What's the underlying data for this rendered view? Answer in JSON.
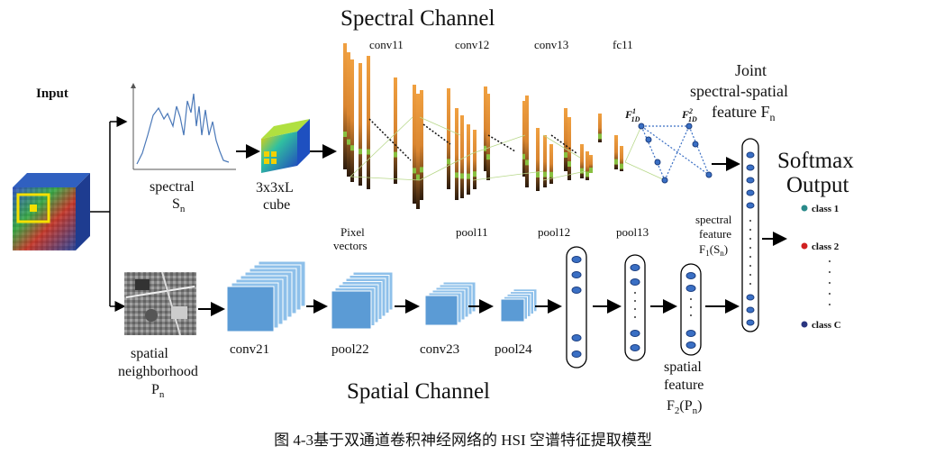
{
  "titles": {
    "spectral_channel": "Spectral Channel",
    "spatial_channel": "Spatial Channel",
    "softmax_line1": "Softmax",
    "softmax_line2": "Output"
  },
  "input": {
    "label": "Input"
  },
  "spectral_branch": {
    "label1": "spectral",
    "label2_main": "S",
    "label2_sub": "n",
    "cube_label1": "3x3xL",
    "cube_label2": "cube",
    "pixel_vectors1": "Pixel",
    "pixel_vectors2": "vectors",
    "layers": {
      "conv11": "conv11",
      "conv12": "conv12",
      "conv13": "conv13",
      "fc11": "fc11",
      "pool11": "pool11",
      "pool12": "pool12",
      "pool13": "pool13"
    },
    "f1d_1_main": "F",
    "f1d_1_sup": "1",
    "f1d_1_sub": "1D",
    "f1d_2_main": "F",
    "f1d_2_sup": "2",
    "f1d_2_sub": "1D",
    "feature1": "spectral",
    "feature2": "feature",
    "feature3_main": "F",
    "feature3_sub1": "1",
    "feature3_mid": "(S",
    "feature3_sub2": "n",
    "feature3_end": ")"
  },
  "joint": {
    "line1": "Joint",
    "line2": "spectral-spatial",
    "line3_main": "feature F",
    "line3_sub": "n"
  },
  "classes": [
    {
      "label": "class 1",
      "color": "#2a8a8a"
    },
    {
      "label": "class 2",
      "color": "#d02020"
    },
    {
      "label": "class C",
      "color": "#2a3580"
    }
  ],
  "spatial_branch": {
    "label1": "spatial",
    "label2": "neighborhood",
    "label3_main": "P",
    "label3_sub": "n",
    "layers": {
      "conv21": "conv21",
      "pool22": "pool22",
      "conv23": "conv23",
      "pool24": "pool24"
    },
    "feature1": "spatial",
    "feature2": "feature",
    "feature3_main": "F",
    "feature3_sub1": "2",
    "feature3_mid": "(P",
    "feature3_sub2": "n",
    "feature3_end": ")"
  },
  "caption": "图  4-3基于双通道卷积神经网络的 HSI 空谱特征提取模型",
  "colors": {
    "bar_orange": "#e8943a",
    "bar_dark": "#2a1a0c",
    "bar_green": "#88c040",
    "map_blue": "#5b9bd5",
    "node_blue": "#3a6fc4",
    "highlight_yellow": "#f5e000"
  }
}
